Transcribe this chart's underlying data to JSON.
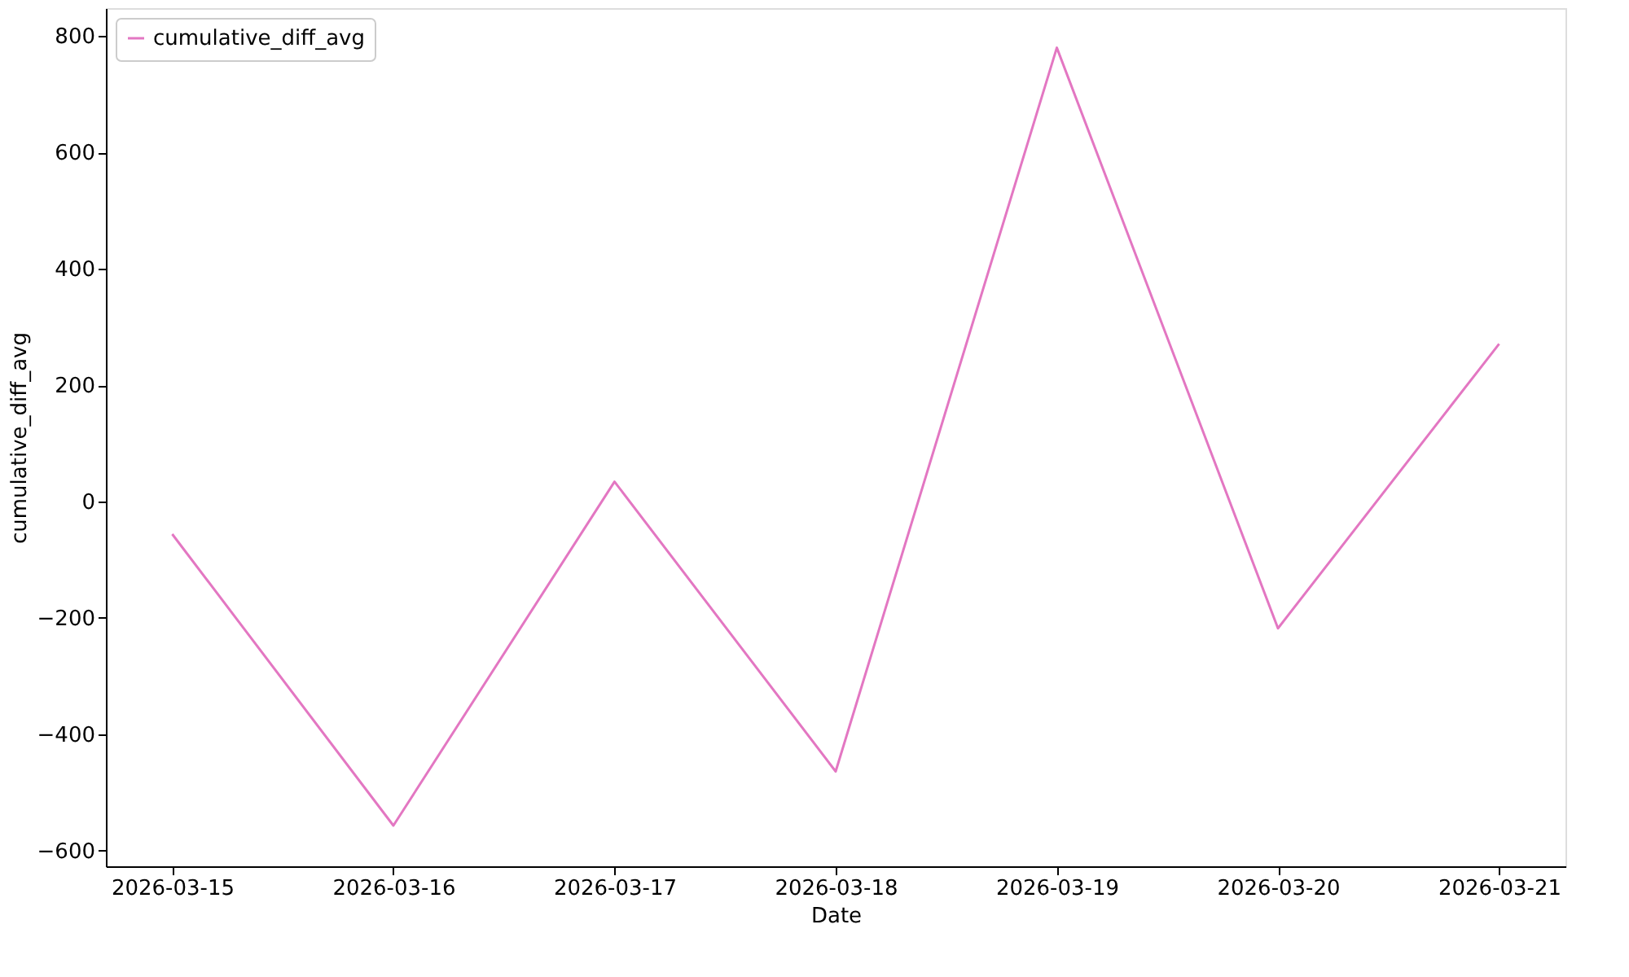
{
  "chart_data": {
    "type": "line",
    "xlabel": "Date",
    "ylabel": "cumulative_diff_avg",
    "x": [
      "2026-03-15",
      "2026-03-16",
      "2026-03-17",
      "2026-03-18",
      "2026-03-19",
      "2026-03-20",
      "2026-03-21"
    ],
    "series": [
      {
        "name": "cumulative_diff_avg",
        "color": "#e377c2",
        "values": [
          -56,
          -557,
          34,
          -464,
          780,
          -218,
          271
        ]
      }
    ],
    "xlim": [
      "2026-03-14T16:48",
      "2026-03-21T07:12"
    ],
    "xticks": [
      "2026-03-15",
      "2026-03-16",
      "2026-03-17",
      "2026-03-18",
      "2026-03-19",
      "2026-03-20",
      "2026-03-21"
    ],
    "ylim": [
      -627,
      848
    ],
    "yticks": [
      -600,
      -400,
      -200,
      0,
      200,
      400,
      600,
      800
    ],
    "grid": false,
    "legend": "top left",
    "marker": "none",
    "line_style": "solid"
  }
}
